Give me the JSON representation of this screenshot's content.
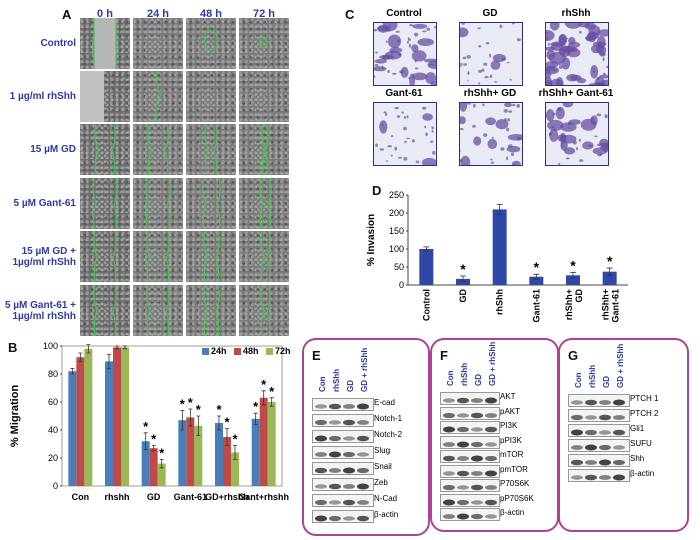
{
  "panels": {
    "a": "A",
    "b": "B",
    "c": "C",
    "d": "D",
    "e": "E",
    "f": "F",
    "g": "G"
  },
  "panel_a": {
    "timepoints": [
      "0 h",
      "24 h",
      "48 h",
      "72 h"
    ],
    "rows": [
      "Control",
      "1 µg/ml rhShh",
      "15 µM GD",
      "5 µM Gant-61",
      "15 µM GD +\n1µg/ml rhShh",
      "5 µM Gant-61 +\n1µg/ml rhShh"
    ]
  },
  "panel_c": {
    "labels": [
      "Control",
      "GD",
      "rhShh",
      "Gant-61",
      "rhShh+ GD",
      "rhShh+ Gant-61"
    ]
  },
  "chart_data": [
    {
      "type": "bar",
      "ylabel": "% Migration",
      "categories": [
        "Con",
        "rhshh",
        "GD",
        "Gant-61",
        "GD+rhshh",
        "Gant+rhshh"
      ],
      "ylim": [
        0,
        100
      ],
      "yticks": [
        0,
        20,
        40,
        60,
        80,
        100
      ],
      "series": [
        {
          "name": "24h",
          "color": "#4a7ebb",
          "values": [
            82,
            89,
            32,
            47,
            45,
            48
          ],
          "errors": [
            2,
            5,
            6,
            7,
            5,
            4
          ]
        },
        {
          "name": "48h",
          "color": "#be4b48",
          "values": [
            92,
            99,
            27,
            49,
            35,
            63
          ],
          "errors": [
            3,
            1,
            2,
            6,
            6,
            5
          ]
        },
        {
          "name": "72h",
          "color": "#98b954",
          "values": [
            98,
            99,
            16,
            43,
            24,
            60
          ],
          "errors": [
            3,
            1,
            3,
            7,
            5,
            3
          ]
        }
      ],
      "significance": [
        {
          "category": "GD",
          "series": [
            "24h",
            "48h",
            "72h"
          ]
        },
        {
          "category": "Gant-61",
          "series": [
            "24h",
            "48h",
            "72h"
          ]
        },
        {
          "category": "GD+rhshh",
          "series": [
            "24h",
            "48h",
            "72h"
          ]
        },
        {
          "category": "Gant+rhshh",
          "series": [
            "24h",
            "48h",
            "72h"
          ]
        }
      ],
      "significance_mark": "*",
      "legend": "top-right"
    },
    {
      "type": "bar",
      "ylabel": "% Invasion",
      "categories": [
        "Control",
        "GD",
        "rhShh",
        "Gant-61",
        "rhShh+ GD",
        "rhShh+ Gant-61"
      ],
      "values": [
        100,
        17,
        210,
        23,
        27,
        37
      ],
      "errors": [
        6,
        8,
        14,
        7,
        8,
        10
      ],
      "significant": [
        false,
        true,
        false,
        true,
        true,
        true
      ],
      "significance_mark": "*",
      "color": "#2f48a8",
      "ylim": [
        0,
        250
      ],
      "yticks": [
        0,
        50,
        100,
        150,
        200,
        250
      ]
    }
  ],
  "panel_e": {
    "cols": [
      "Con",
      "rhShh",
      "GD",
      "GD + rhShh"
    ],
    "rows": [
      "E-cad",
      "Notch-1",
      "Notch-2",
      "Slug",
      "Snail",
      "Zeb",
      "N-Cad",
      "β-actin"
    ]
  },
  "panel_f": {
    "cols": [
      "Con",
      "rhShh",
      "GD",
      "GD + rhShh"
    ],
    "rows": [
      "AKT",
      "pAKT",
      "PI3K",
      "pPI3K",
      "mTOR",
      "pmTOR",
      "P70S6K",
      "pP70S6K",
      "β-actin"
    ]
  },
  "panel_g": {
    "cols": [
      "Con",
      "rhShh",
      "GD",
      "GD + rhShh"
    ],
    "rows": [
      "PTCH 1",
      "PTCH 2",
      "Gli1",
      "SUFU",
      "Shh",
      "β-actin"
    ]
  }
}
